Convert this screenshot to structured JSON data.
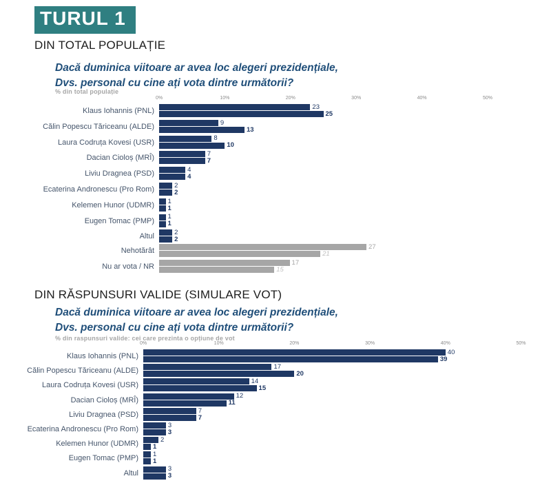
{
  "page": {
    "turul_label": "TURUL 1"
  },
  "colors": {
    "bar_navy": "#1F3864",
    "bar_gray": "#A6A6A6",
    "bar_gray_light_label": "#BFBFBF",
    "teal_header": "#2F7F81",
    "question_navy": "#1F4E79",
    "category_label": "#44546A"
  },
  "sections": [
    {
      "heading": "DIN TOTAL POPULAȚIE",
      "question_line1": "Dacă duminica viitoare ar avea loc alegeri prezidențiale,",
      "question_line2": "Dvs. personal cu cine ați vota dintre următorii?"
    },
    {
      "heading": "DIN RĂSPUNSURI VALIDE (SIMULARE VOT)",
      "question_line1": "Dacă duminica viitoare ar avea loc alegeri prezidențiale,",
      "question_line2": "Dvs. personal cu cine ați vota dintre următorii?"
    }
  ],
  "chart_data": [
    {
      "id": "din-total-populatie",
      "type": "bar",
      "orientation": "horizontal",
      "subtitle": "% din total populație",
      "axis_ticks": [
        "0%",
        "10%",
        "20%",
        "30%",
        "40%",
        "50%"
      ],
      "xlim": [
        0,
        50
      ],
      "grid": false,
      "legend": "none",
      "categories": [
        "Klaus Iohannis (PNL)",
        "Călin Popescu Tăriceanu (ALDE)",
        "Laura Codruța Kovesi (USR)",
        "Dacian Cioloș (MRÎ)",
        "Liviu Dragnea (PSD)",
        "Ecaterina Andronescu (Pro Rom)",
        "Kelemen Hunor (UDMR)",
        "Eugen Tomac (PMP)",
        "Altul"
      ],
      "series": [
        {
          "name": "top",
          "values": [
            23,
            9,
            8,
            7,
            4,
            2,
            1,
            1,
            2
          ]
        },
        {
          "name": "bottom",
          "values": [
            25,
            13,
            10,
            7,
            4,
            2,
            1,
            1,
            2
          ]
        }
      ]
    },
    {
      "id": "nehotarati-nu-voteaza",
      "type": "bar",
      "orientation": "horizontal",
      "grid": false,
      "legend": "none",
      "categories": [
        "Nehotărât",
        "Nu ar vota / NR"
      ],
      "series": [
        {
          "name": "top",
          "values": [
            27,
            17
          ]
        },
        {
          "name": "bottom",
          "values": [
            21,
            15
          ]
        }
      ]
    },
    {
      "id": "din-raspunsuri-valide",
      "type": "bar",
      "orientation": "horizontal",
      "subtitle": "% din raspunsuri valide: cei care prezinta o opțiune de vot",
      "axis_ticks": [
        "0%",
        "10%",
        "20%",
        "30%",
        "40%",
        "50%"
      ],
      "xlim": [
        0,
        50
      ],
      "grid": false,
      "legend": "none",
      "categories": [
        "Klaus Iohannis (PNL)",
        "Călin Popescu Tăriceanu (ALDE)",
        "Laura Codruța Kovesi (USR)",
        "Dacian Cioloș (MRÎ)",
        "Liviu Dragnea (PSD)",
        "Ecaterina Andronescu (Pro Rom)",
        "Kelemen Hunor (UDMR)",
        "Eugen Tomac (PMP)",
        "Altul"
      ],
      "series": [
        {
          "name": "top",
          "values": [
            40,
            17,
            14,
            12,
            7,
            3,
            2,
            1,
            3
          ]
        },
        {
          "name": "bottom",
          "values": [
            39,
            20,
            15,
            11,
            7,
            3,
            1,
            1,
            3
          ]
        }
      ]
    }
  ]
}
